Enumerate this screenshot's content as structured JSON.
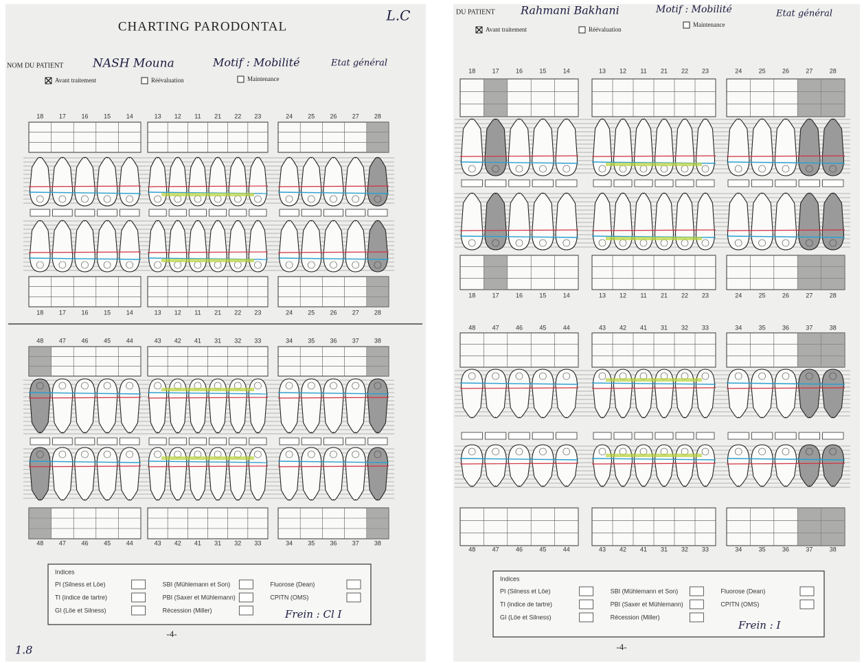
{
  "pages": [
    {
      "title": "CHARTING PARODONTAL",
      "corner_note": "L.C",
      "patient_label": "NOM DU PATIENT",
      "patient_name": "NASH Mouna",
      "motif": "Motif : Mobilité",
      "etat": "Etat général",
      "checkboxes": [
        "Avant traitement",
        "Réévaluation",
        "Maintenance"
      ],
      "page_number": "-4-",
      "frein": "Frein : Cl I",
      "footer_mark": "1.8"
    },
    {
      "patient_label": "DU PATIENT",
      "patient_name": "Rahmani Bakhani",
      "motif": "Motif : Mobilité",
      "etat": "Etat général",
      "checkboxes": [
        "Avant traitement",
        "Réévaluation",
        "Maintenance"
      ],
      "page_number": "-4-",
      "frein": "Frein : I"
    }
  ],
  "tooth_numbers": {
    "upper": [
      "18",
      "17",
      "16",
      "15",
      "14",
      "13",
      "12",
      "11",
      "21",
      "22",
      "23",
      "24",
      "25",
      "26",
      "27",
      "28"
    ],
    "lower": [
      "48",
      "47",
      "46",
      "45",
      "44",
      "43",
      "42",
      "41",
      "31",
      "32",
      "33",
      "34",
      "35",
      "36",
      "37",
      "38"
    ]
  },
  "indices": {
    "title": "Indices",
    "labels": [
      "PI (Silness et Löe)",
      "TI (indice de tartre)",
      "GI (Löe et Silness)",
      "SBI (Mühlemann et Son)",
      "PBI (Saxer et Mühlemann)",
      "Récession (Miller)",
      "Fluorose (Dean)",
      "CPITN (OMS)"
    ]
  }
}
